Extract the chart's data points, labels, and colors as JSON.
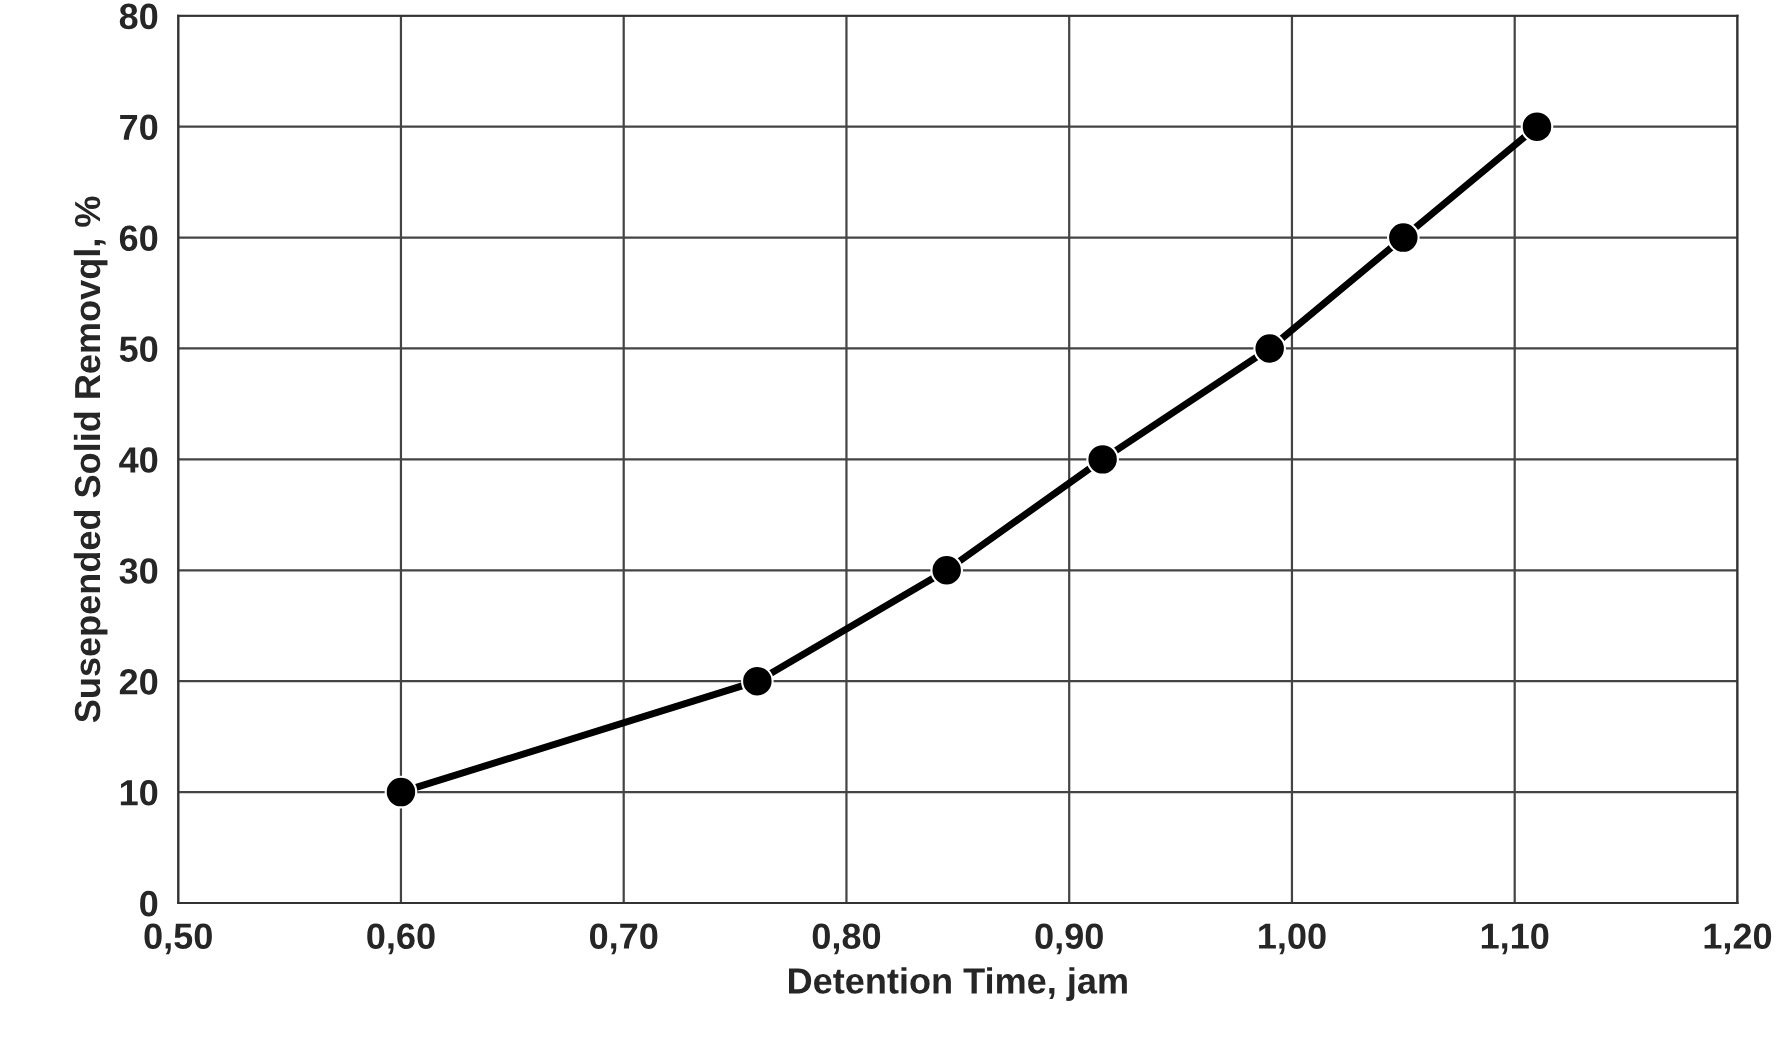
{
  "chart_data": {
    "type": "line",
    "xlabel": "Detention Time, jam",
    "ylabel": "Susepended Solid Removql, %",
    "x": [
      0.6,
      0.76,
      0.845,
      0.915,
      0.99,
      1.05,
      1.11
    ],
    "series": [
      {
        "color": "#000000",
        "values": [
          10,
          20,
          30,
          40,
          50,
          60,
          70
        ]
      }
    ],
    "xlim": [
      0.5,
      1.2
    ],
    "xticks": [
      {
        "value": 0.5,
        "label": "0,50"
      },
      {
        "value": 0.6,
        "label": "0,60"
      },
      {
        "value": 0.7,
        "label": "0,70"
      },
      {
        "value": 0.8,
        "label": "0,80"
      },
      {
        "value": 0.9,
        "label": "0,90"
      },
      {
        "value": 1.0,
        "label": "1,00"
      },
      {
        "value": 1.1,
        "label": "1,10"
      },
      {
        "value": 1.2,
        "label": "1,20"
      }
    ],
    "ylim": [
      0,
      80
    ],
    "yticks": [
      0,
      10,
      20,
      30,
      40,
      50,
      60,
      70,
      80
    ],
    "grid": true,
    "marker": "circle",
    "line_style": "solid"
  }
}
